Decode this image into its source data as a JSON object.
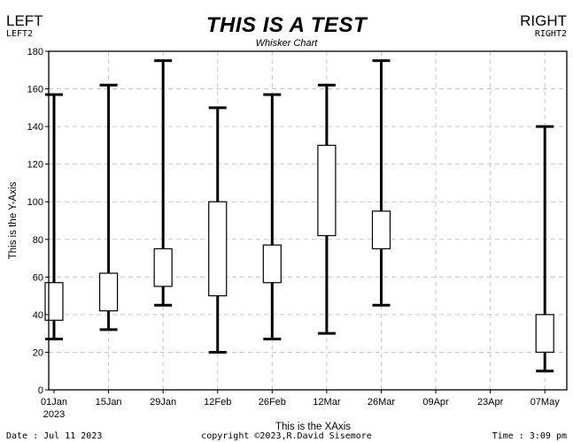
{
  "header": {
    "left_main": "LEFT",
    "left_sub": "LEFT2",
    "right_main": "RIGHT",
    "right_sub": "RIGHT2"
  },
  "footer": {
    "date": "Date : Jul 11 2023",
    "copyright": "copyright ©2023,R.David Sisemore",
    "time": "Time : 3:09 pm"
  },
  "chart_data": {
    "type": "whisker",
    "title": "THIS IS A TEST",
    "subtitle": "Whisker Chart",
    "xlabel": "This is the XAxis",
    "ylabel": "This is the Y-Axis",
    "ylim": [
      0,
      180
    ],
    "yticks": [
      0,
      20,
      40,
      60,
      80,
      100,
      120,
      140,
      160,
      180
    ],
    "xticks": [
      "01Jan",
      "15Jan",
      "29Jan",
      "12Feb",
      "26Feb",
      "12Mar",
      "26Mar",
      "09Apr",
      "23Apr",
      "07May"
    ],
    "xtick_year": "2023",
    "xlim_days": [
      0,
      133
    ],
    "grid": true,
    "series": [
      {
        "date": "01Jan",
        "low": 27,
        "box_low": 37,
        "box_high": 57,
        "high": 157
      },
      {
        "date": "15Jan",
        "low": 32,
        "box_low": 42,
        "box_high": 62,
        "high": 162
      },
      {
        "date": "29Jan",
        "low": 45,
        "box_low": 55,
        "box_high": 75,
        "high": 175
      },
      {
        "date": "12Feb",
        "low": 20,
        "box_low": 50,
        "box_high": 100,
        "high": 150
      },
      {
        "date": "26Feb",
        "low": 27,
        "box_low": 57,
        "box_high": 77,
        "high": 157
      },
      {
        "date": "12Mar",
        "low": 30,
        "box_low": 82,
        "box_high": 130,
        "high": 162
      },
      {
        "date": "26Mar",
        "low": 45,
        "box_low": 75,
        "box_high": 95,
        "high": 175
      },
      {
        "date": "07May",
        "low": 10,
        "box_low": 20,
        "box_high": 40,
        "high": 140
      }
    ]
  }
}
